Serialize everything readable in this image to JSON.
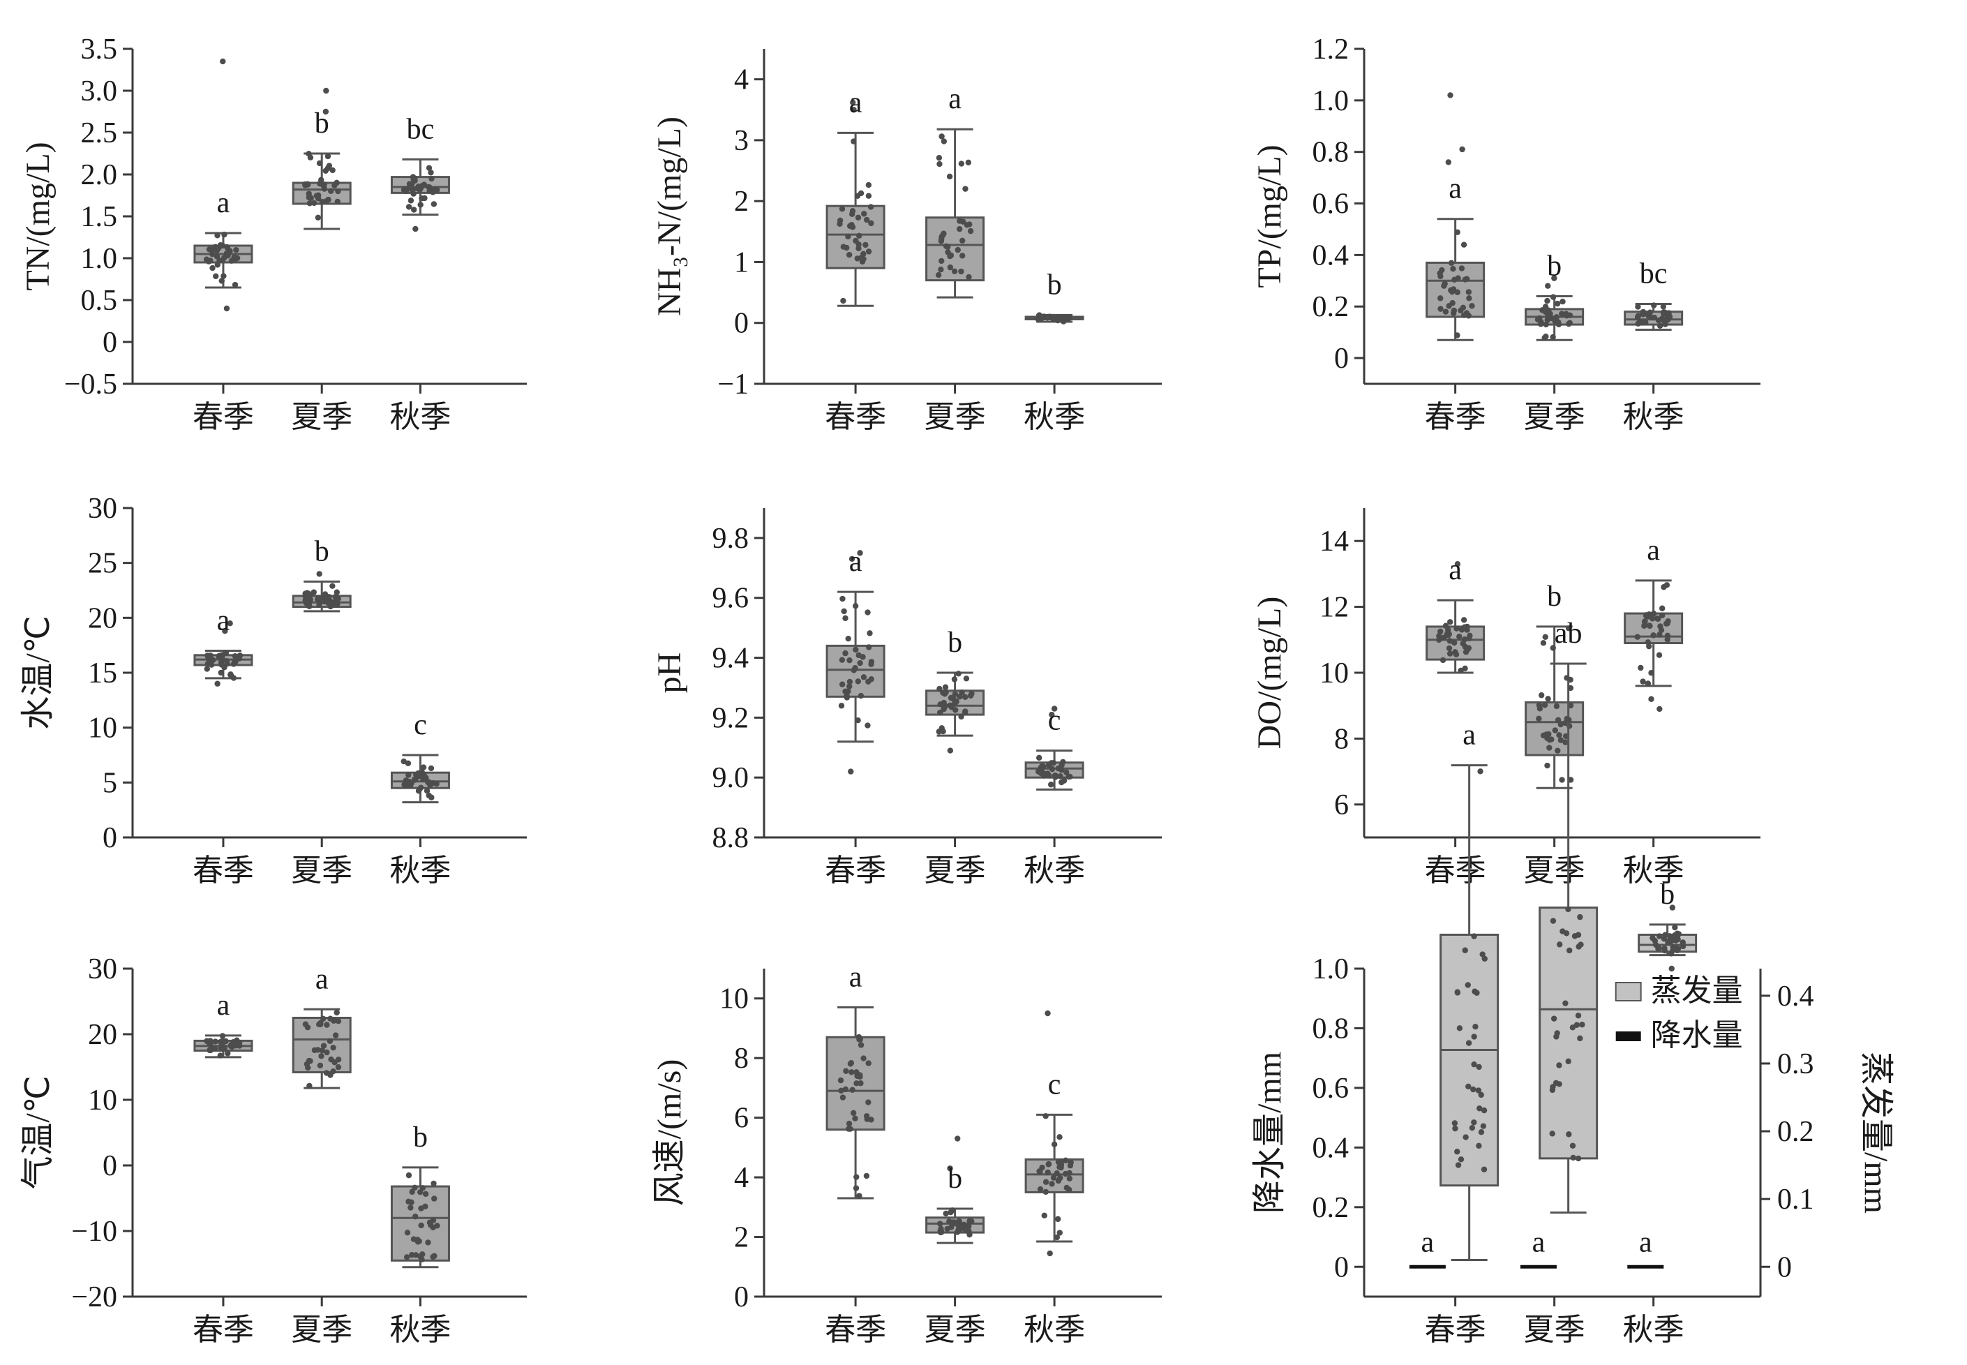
{
  "chart_data": [
    {
      "type": "box",
      "id": "tn",
      "ylabel": "TN/(mg/L)",
      "ylim": [
        -0.5,
        3.5
      ],
      "yticks": [
        -0.5,
        0,
        0.5,
        1.0,
        1.5,
        2.0,
        2.5,
        3.0,
        3.5
      ],
      "ytick_labels": [
        "−0.5",
        "0",
        "0.5",
        "1.0",
        "1.5",
        "2.0",
        "2.5",
        "3.0",
        "3.5"
      ],
      "categories": [
        "春季",
        "夏季",
        "秋季"
      ],
      "boxes": [
        {
          "min": 0.65,
          "q1": 0.95,
          "median": 1.05,
          "q3": 1.15,
          "max": 1.3,
          "letter": "a",
          "outliers": [
            3.35,
            0.4
          ]
        },
        {
          "min": 1.35,
          "q1": 1.65,
          "median": 1.82,
          "q3": 1.9,
          "max": 2.25,
          "letter": "b",
          "outliers": [
            3.0,
            2.75
          ]
        },
        {
          "min": 1.52,
          "q1": 1.78,
          "median": 1.85,
          "q3": 1.97,
          "max": 2.18,
          "letter": "bc",
          "outliers": [
            1.35
          ]
        }
      ]
    },
    {
      "type": "box",
      "id": "nh3",
      "ylabel": "NH₃-N/(mg/L)",
      "ylim": [
        -1,
        4.5
      ],
      "yticks": [
        -1,
        0,
        1,
        2,
        3,
        4
      ],
      "ytick_labels": [
        "−1",
        "0",
        "1",
        "2",
        "3",
        "4"
      ],
      "categories": [
        "春季",
        "夏季",
        "秋季"
      ],
      "boxes": [
        {
          "min": 0.28,
          "q1": 0.9,
          "median": 1.45,
          "q3": 1.92,
          "max": 3.12,
          "letter": "a",
          "outliers": [
            3.62,
            3.5
          ]
        },
        {
          "min": 0.42,
          "q1": 0.7,
          "median": 1.28,
          "q3": 1.73,
          "max": 3.18,
          "letter": "a",
          "outliers": []
        },
        {
          "min": 0.02,
          "q1": 0.06,
          "median": 0.08,
          "q3": 0.1,
          "max": 0.13,
          "letter": "b",
          "outliers": []
        }
      ]
    },
    {
      "type": "box",
      "id": "tp",
      "ylabel": "TP/(mg/L)",
      "ylim": [
        -0.1,
        1.2
      ],
      "yticks": [
        0,
        0.2,
        0.4,
        0.6,
        0.8,
        1.0,
        1.2
      ],
      "ytick_labels": [
        "0",
        "0.2",
        "0.4",
        "0.6",
        "0.8",
        "1.0",
        "1.2"
      ],
      "categories": [
        "春季",
        "夏季",
        "秋季"
      ],
      "boxes": [
        {
          "min": 0.07,
          "q1": 0.16,
          "median": 0.3,
          "q3": 0.37,
          "max": 0.54,
          "letter": "a",
          "outliers": [
            1.02,
            0.81,
            0.76
          ]
        },
        {
          "min": 0.07,
          "q1": 0.13,
          "median": 0.16,
          "q3": 0.19,
          "max": 0.24,
          "letter": "b",
          "outliers": [
            0.31,
            0.28
          ]
        },
        {
          "min": 0.11,
          "q1": 0.13,
          "median": 0.15,
          "q3": 0.18,
          "max": 0.21,
          "letter": "bc",
          "outliers": []
        }
      ]
    },
    {
      "type": "box",
      "id": "wt",
      "ylabel": "水温/℃",
      "ylim": [
        0,
        30
      ],
      "yticks": [
        0,
        5,
        10,
        15,
        20,
        25,
        30
      ],
      "ytick_labels": [
        "0",
        "5",
        "10",
        "15",
        "20",
        "25",
        "30"
      ],
      "categories": [
        "春季",
        "夏季",
        "秋季"
      ],
      "boxes": [
        {
          "min": 14.5,
          "q1": 15.7,
          "median": 16.2,
          "q3": 16.6,
          "max": 17.0,
          "letter": "a",
          "outliers": [
            19.5,
            18.8,
            14.0
          ]
        },
        {
          "min": 20.6,
          "q1": 21.0,
          "median": 21.4,
          "q3": 22.0,
          "max": 23.3,
          "letter": "b",
          "outliers": [
            24.0
          ]
        },
        {
          "min": 3.2,
          "q1": 4.5,
          "median": 5.1,
          "q3": 5.9,
          "max": 7.5,
          "letter": "c",
          "outliers": []
        }
      ]
    },
    {
      "type": "box",
      "id": "ph",
      "ylabel": "pH",
      "ylim": [
        8.8,
        9.9
      ],
      "yticks": [
        8.8,
        9.0,
        9.2,
        9.4,
        9.6,
        9.8
      ],
      "ytick_labels": [
        "8.8",
        "9.0",
        "9.2",
        "9.4",
        "9.6",
        "9.8"
      ],
      "categories": [
        "春季",
        "夏季",
        "秋季"
      ],
      "boxes": [
        {
          "min": 9.12,
          "q1": 9.27,
          "median": 9.36,
          "q3": 9.44,
          "max": 9.62,
          "letter": "a",
          "outliers": [
            9.75,
            9.73,
            9.02
          ]
        },
        {
          "min": 9.14,
          "q1": 9.21,
          "median": 9.24,
          "q3": 9.29,
          "max": 9.35,
          "letter": "b",
          "outliers": [
            9.09
          ]
        },
        {
          "min": 8.96,
          "q1": 9.0,
          "median": 9.03,
          "q3": 9.05,
          "max": 9.09,
          "letter": "c",
          "outliers": [
            9.23,
            9.21
          ]
        }
      ]
    },
    {
      "type": "box",
      "id": "do",
      "ylabel": "DO/(mg/L)",
      "ylim": [
        5,
        15
      ],
      "yticks": [
        6,
        8,
        10,
        12,
        14
      ],
      "ytick_labels": [
        "6",
        "8",
        "10",
        "12",
        "14"
      ],
      "categories": [
        "春季",
        "夏季",
        "秋季"
      ],
      "boxes": [
        {
          "min": 10.0,
          "q1": 10.4,
          "median": 11.0,
          "q3": 11.4,
          "max": 12.2,
          "letter": "a",
          "outliers": [
            13.3
          ]
        },
        {
          "min": 6.5,
          "q1": 7.5,
          "median": 8.5,
          "q3": 9.1,
          "max": 11.4,
          "letter": "b",
          "outliers": []
        },
        {
          "min": 9.6,
          "q1": 10.9,
          "median": 11.1,
          "q3": 11.8,
          "max": 12.8,
          "letter": "a",
          "outliers": [
            9.2,
            8.9
          ]
        }
      ]
    },
    {
      "type": "box",
      "id": "at",
      "ylabel": "气温/℃",
      "ylim": [
        -20,
        30
      ],
      "yticks": [
        -20,
        -10,
        0,
        10,
        20,
        30
      ],
      "ytick_labels": [
        "−20",
        "−10",
        "0",
        "10",
        "20",
        "30"
      ],
      "categories": [
        "春季",
        "夏季",
        "秋季"
      ],
      "boxes": [
        {
          "min": 16.5,
          "q1": 17.5,
          "median": 18.2,
          "q3": 19.0,
          "max": 19.8,
          "letter": "a",
          "outliers": []
        },
        {
          "min": 11.8,
          "q1": 14.2,
          "median": 19.2,
          "q3": 22.5,
          "max": 23.8,
          "letter": "a",
          "outliers": []
        },
        {
          "min": -15.5,
          "q1": -14.5,
          "median": -8.0,
          "q3": -3.2,
          "max": -0.3,
          "letter": "b",
          "outliers": []
        }
      ]
    },
    {
      "type": "box",
      "id": "ws",
      "ylabel": "风速/(m/s)",
      "ylim": [
        0,
        11
      ],
      "yticks": [
        0,
        2,
        4,
        6,
        8,
        10
      ],
      "ytick_labels": [
        "0",
        "2",
        "4",
        "6",
        "8",
        "10"
      ],
      "categories": [
        "春季",
        "夏季",
        "秋季"
      ],
      "boxes": [
        {
          "min": 3.3,
          "q1": 5.6,
          "median": 6.9,
          "q3": 8.7,
          "max": 9.7,
          "letter": "a",
          "outliers": []
        },
        {
          "min": 1.8,
          "q1": 2.15,
          "median": 2.45,
          "q3": 2.65,
          "max": 2.95,
          "letter": "b",
          "outliers": [
            5.3,
            4.3
          ]
        },
        {
          "min": 1.85,
          "q1": 3.5,
          "median": 4.1,
          "q3": 4.6,
          "max": 6.1,
          "letter": "c",
          "outliers": [
            9.5,
            1.45
          ]
        }
      ]
    },
    {
      "type": "box",
      "id": "ep",
      "ylabel": "降水量/mm",
      "ylabel_right": "蒸发量/mm",
      "ylim": [
        -0.1,
        1.0
      ],
      "yticks": [
        0,
        0.2,
        0.4,
        0.6,
        0.8,
        1.0
      ],
      "ytick_labels": [
        "0",
        "0.2",
        "0.4",
        "0.6",
        "0.8",
        "1.0"
      ],
      "y2lim": [
        -0.044,
        0.44
      ],
      "y2ticks": [
        0,
        0.1,
        0.2,
        0.3,
        0.4
      ],
      "y2tick_labels": [
        "0",
        "0.1",
        "0.2",
        "0.3",
        "0.4"
      ],
      "categories": [
        "春季",
        "夏季",
        "秋季"
      ],
      "legend": {
        "placement": "top-right",
        "entries": [
          "蒸发量",
          "降水量"
        ]
      },
      "precip": [
        {
          "value": 0,
          "letter": "a"
        },
        {
          "value": 0,
          "letter": "a"
        },
        {
          "value": 0,
          "letter": "a"
        }
      ],
      "boxes": [
        {
          "min": 0.01,
          "q1": 0.12,
          "median": 0.32,
          "q3": 0.49,
          "max": 0.74,
          "letter": "a",
          "outliers": []
        },
        {
          "min": 0.08,
          "q1": 0.16,
          "median": 0.38,
          "q3": 0.53,
          "max": 0.89,
          "letter": "ab",
          "outliers": []
        },
        {
          "min": 0.46,
          "q1": 0.465,
          "median": 0.475,
          "q3": 0.49,
          "max": 0.505,
          "letter": "b",
          "outliers": [
            0.53,
            0.44
          ]
        }
      ]
    }
  ]
}
